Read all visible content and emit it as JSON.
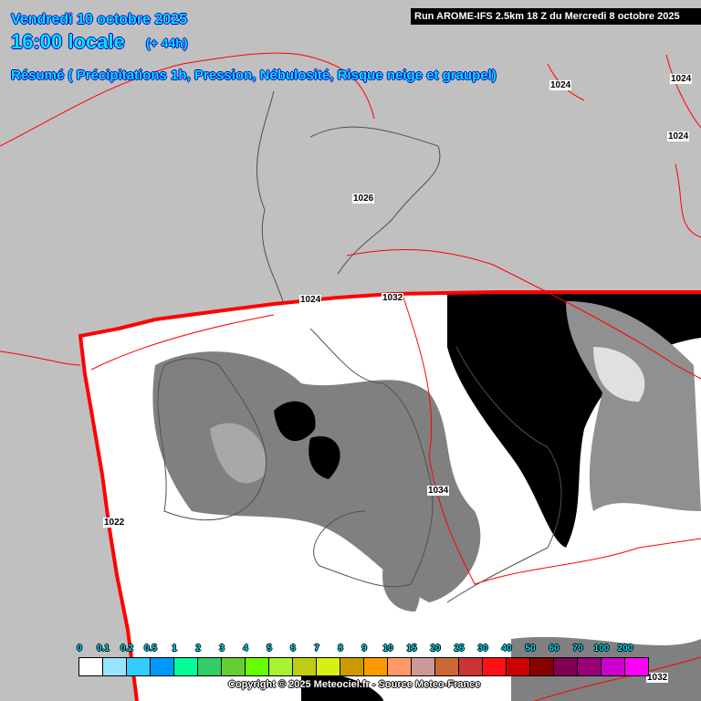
{
  "header": {
    "date": "Vendredi 10 octobre 2025",
    "time": "16:00 locale",
    "lead": "(+ 44h)",
    "summary": "Résumé ( Précipitations 1h, Pression, Nébulosité, Risque neige et graupel)",
    "run": "Run AROME-IFS 2.5km 18 Z du Mercredi 8 octobre 2025"
  },
  "isobars": [
    "1024",
    "1024",
    "1024",
    "1026",
    "1024",
    "1032",
    "1034",
    "1022",
    "1032"
  ],
  "legend": {
    "labels": [
      "0",
      "0.1",
      "0.2",
      "0.5",
      "1",
      "2",
      "3",
      "4",
      "5",
      "6",
      "7",
      "8",
      "9",
      "10",
      "15",
      "20",
      "25",
      "30",
      "40",
      "50",
      "60",
      "70",
      "100",
      "200"
    ],
    "colors": [
      "#ffffff",
      "#99e5ff",
      "#33ccff",
      "#0099ff",
      "#00ff99",
      "#33cc66",
      "#66cc33",
      "#66ff00",
      "#a6f233",
      "#bfcc11",
      "#d9ee11",
      "#cc9900",
      "#ff9900",
      "#ff9966",
      "#cc9999",
      "#cc6633",
      "#cc3333",
      "#ff1111",
      "#cc0000",
      "#880000",
      "#800055",
      "#990077",
      "#cc00cc",
      "#ff00ff"
    ]
  },
  "copyright": "Copyright © 2025 Meteociel.fr - Source Meteo-France",
  "colors": {
    "isobar": "#ff0000",
    "domain_border": "#ff0000",
    "header_text": "#00e5ff",
    "outside_domain": "#c0c0c0"
  }
}
